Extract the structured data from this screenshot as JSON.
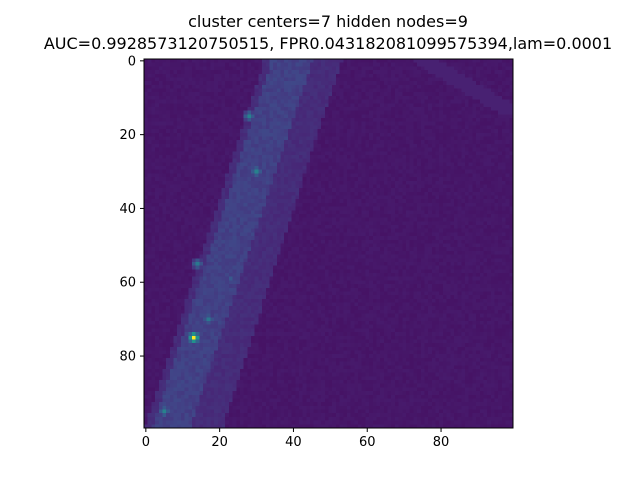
{
  "chart_data": {
    "type": "heatmap",
    "title": [
      "cluster centers=7 hidden nodes=9",
      "AUC=0.9928573120750515, FPR0.043182081099575394,lam=0.0001"
    ],
    "xlabel": "",
    "ylabel": "",
    "grid": false,
    "colormap": "viridis",
    "shape": [
      100,
      100
    ],
    "xlim": [
      0,
      99
    ],
    "ylim": [
      99,
      0
    ],
    "x_ticks": [
      0,
      20,
      40,
      60,
      80
    ],
    "y_ticks": [
      0,
      20,
      40,
      60,
      80
    ],
    "value_range": [
      0,
      1
    ],
    "background_level": 0.08,
    "band": {
      "outer_x_at_row0": [
        32,
        53
      ],
      "outer_x_at_row99": [
        0,
        21
      ],
      "inner_x_at_row0": [
        34,
        45
      ],
      "inner_x_at_row99": [
        2,
        12
      ],
      "outer_level": 0.16,
      "inner_level": 0.24
    },
    "upper_right_band": {
      "from": [
        76,
        0
      ],
      "to": [
        99,
        14
      ],
      "level": 0.12
    },
    "hotspots": [
      {
        "col": 28,
        "row": 15,
        "value": 0.55
      },
      {
        "col": 30,
        "row": 30,
        "value": 0.55
      },
      {
        "col": 14,
        "row": 55,
        "value": 0.5
      },
      {
        "col": 23,
        "row": 59,
        "value": 0.35
      },
      {
        "col": 17,
        "row": 70,
        "value": 0.5
      },
      {
        "col": 13,
        "row": 75,
        "value": 1.0
      },
      {
        "col": 5,
        "row": 95,
        "value": 0.55
      }
    ]
  }
}
